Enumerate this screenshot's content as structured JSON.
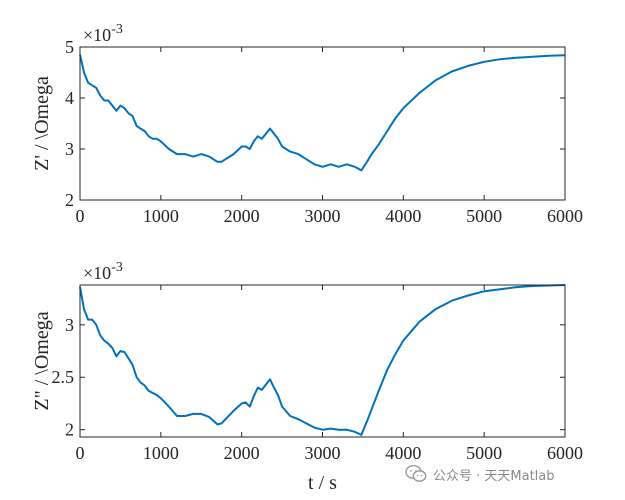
{
  "chart_data": [
    {
      "type": "line",
      "xlabel": "",
      "ylabel": "Z' / \\Omega",
      "exponent_base": "×10",
      "exponent_power": "-3",
      "xlim": [
        0,
        6000
      ],
      "ylim": [
        2,
        5
      ],
      "xticks": [
        0,
        1000,
        2000,
        3000,
        4000,
        5000,
        6000
      ],
      "yticks": [
        2,
        3,
        4,
        5
      ],
      "line_color": "#0072BD",
      "series": [
        {
          "x": [
            0,
            50,
            100,
            150,
            200,
            250,
            300,
            350,
            400,
            450,
            500,
            550,
            600,
            650,
            700,
            750,
            800,
            850,
            900,
            950,
            1000,
            1100,
            1200,
            1300,
            1400,
            1500,
            1600,
            1700,
            1750,
            1800,
            1900,
            2000,
            2050,
            2100,
            2150,
            2200,
            2250,
            2300,
            2350,
            2400,
            2450,
            2500,
            2600,
            2700,
            2800,
            2900,
            3000,
            3100,
            3200,
            3300,
            3400,
            3480,
            3550,
            3600,
            3700,
            3800,
            3900,
            4000,
            4200,
            4400,
            4600,
            4800,
            5000,
            5200,
            5400,
            5600,
            5800,
            6000
          ],
          "y": [
            4.85,
            4.5,
            4.3,
            4.25,
            4.2,
            4.05,
            3.95,
            3.95,
            3.85,
            3.75,
            3.85,
            3.8,
            3.7,
            3.65,
            3.45,
            3.4,
            3.35,
            3.25,
            3.2,
            3.2,
            3.15,
            3.0,
            2.9,
            2.9,
            2.85,
            2.9,
            2.85,
            2.75,
            2.75,
            2.8,
            2.9,
            3.05,
            3.05,
            3.0,
            3.15,
            3.25,
            3.2,
            3.3,
            3.4,
            3.3,
            3.2,
            3.05,
            2.95,
            2.9,
            2.8,
            2.7,
            2.65,
            2.7,
            2.65,
            2.7,
            2.65,
            2.58,
            2.75,
            2.88,
            3.1,
            3.35,
            3.6,
            3.8,
            4.1,
            4.35,
            4.52,
            4.63,
            4.71,
            4.76,
            4.79,
            4.81,
            4.83,
            4.84
          ]
        }
      ]
    },
    {
      "type": "line",
      "xlabel": "t  /  s",
      "ylabel": "Z\" / \\Omega",
      "exponent_base": "×10",
      "exponent_power": "-3",
      "xlim": [
        0,
        6000
      ],
      "ylim": [
        1.93,
        3.38
      ],
      "xticks": [
        0,
        1000,
        2000,
        3000,
        4000,
        5000,
        6000
      ],
      "yticks": [
        2,
        2.5,
        3
      ],
      "yticklabels": [
        "2",
        "2.5",
        "3"
      ],
      "line_color": "#0072BD",
      "series": [
        {
          "x": [
            0,
            50,
            100,
            150,
            200,
            250,
            300,
            350,
            400,
            450,
            500,
            550,
            600,
            650,
            700,
            750,
            800,
            850,
            900,
            950,
            1000,
            1100,
            1200,
            1300,
            1400,
            1500,
            1600,
            1700,
            1750,
            1800,
            1900,
            2000,
            2050,
            2100,
            2150,
            2200,
            2250,
            2300,
            2350,
            2400,
            2450,
            2500,
            2600,
            2700,
            2800,
            2900,
            3000,
            3100,
            3200,
            3300,
            3400,
            3480,
            3550,
            3600,
            3700,
            3800,
            3900,
            4000,
            4200,
            4400,
            4600,
            4800,
            5000,
            5200,
            5400,
            5600,
            5800,
            6000
          ],
          "y": [
            3.36,
            3.15,
            3.05,
            3.05,
            3.0,
            2.9,
            2.85,
            2.82,
            2.78,
            2.7,
            2.75,
            2.74,
            2.68,
            2.62,
            2.5,
            2.45,
            2.42,
            2.37,
            2.35,
            2.33,
            2.3,
            2.22,
            2.13,
            2.13,
            2.15,
            2.15,
            2.12,
            2.05,
            2.06,
            2.1,
            2.18,
            2.25,
            2.26,
            2.22,
            2.32,
            2.4,
            2.38,
            2.43,
            2.48,
            2.4,
            2.33,
            2.22,
            2.13,
            2.1,
            2.06,
            2.02,
            2.0,
            2.01,
            2.0,
            2.0,
            1.98,
            1.95,
            2.08,
            2.18,
            2.38,
            2.57,
            2.72,
            2.85,
            3.03,
            3.15,
            3.23,
            3.28,
            3.32,
            3.34,
            3.36,
            3.37,
            3.375,
            3.38
          ]
        }
      ]
    }
  ],
  "watermark": {
    "text": "公众号 · 天天Matlab",
    "icon": "wechat-icon"
  }
}
